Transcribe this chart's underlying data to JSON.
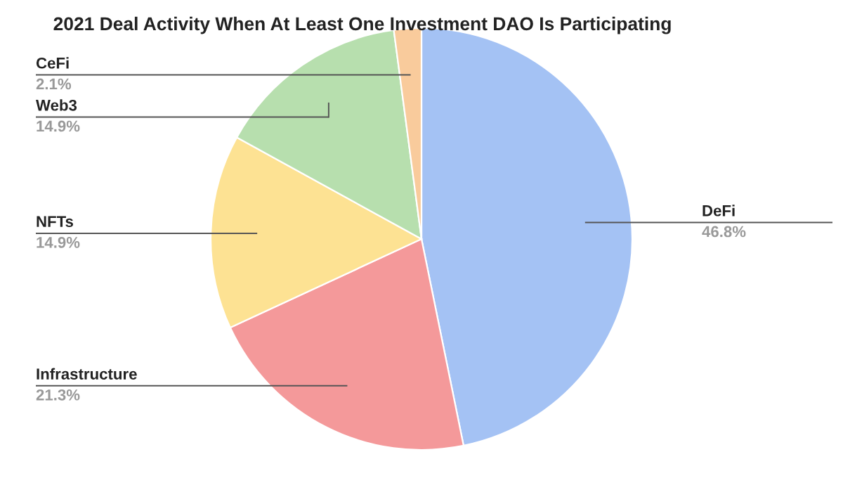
{
  "chart_data": {
    "type": "pie",
    "title": "2021 Deal Activity When At Least One Investment DAO Is Participating",
    "categories": [
      "DeFi",
      "Infrastructure",
      "NFTs",
      "Web3",
      "CeFi"
    ],
    "values": [
      46.8,
      21.3,
      14.9,
      14.9,
      2.1
    ],
    "value_labels": [
      "46.8%",
      "21.3%",
      "14.9%",
      "14.9%",
      "2.1%"
    ],
    "colors": [
      "#a4c2f4",
      "#f4999a",
      "#fde293",
      "#b7dfae",
      "#f9cb9c"
    ],
    "legend": false
  }
}
